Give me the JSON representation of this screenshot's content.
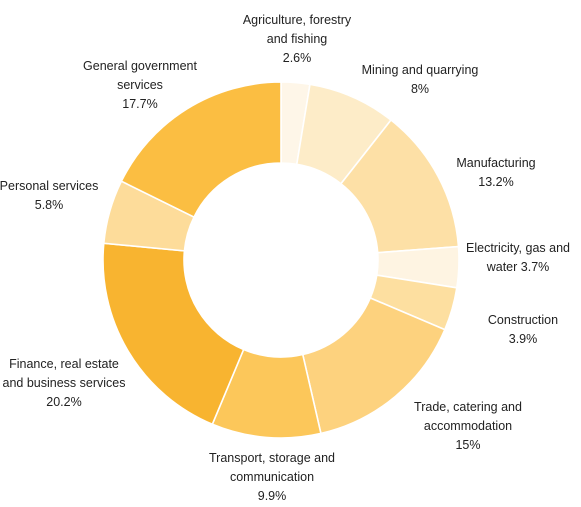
{
  "chart_data": {
    "type": "pie",
    "variant": "donut",
    "slices": [
      {
        "label": "Agriculture, forestry and fishing",
        "value": 2.6,
        "value_label": "2.6%",
        "color": "#fef6e8"
      },
      {
        "label": "Mining and quarrying",
        "value": 8,
        "value_label": "8%",
        "color": "#fdecc8"
      },
      {
        "label": "Manufacturing",
        "value": 13.2,
        "value_label": "13.2%",
        "color": "#fde0a6"
      },
      {
        "label": "Electricity, gas and water",
        "value": 3.7,
        "value_label": "3.7%",
        "color": "#fef4e2"
      },
      {
        "label": "Construction",
        "value": 3.9,
        "value_label": "3.9%",
        "color": "#fddfa0"
      },
      {
        "label": "Trade, catering and accommodation",
        "value": 15,
        "value_label": "15%",
        "color": "#fdd27e"
      },
      {
        "label": "Transport, storage and communication",
        "value": 9.9,
        "value_label": "9.9%",
        "color": "#fcc75a"
      },
      {
        "label": "Finance, real estate and business services",
        "value": 20.2,
        "value_label": "20.2%",
        "color": "#f8b430"
      },
      {
        "label": "Personal services",
        "value": 5.8,
        "value_label": "5.8%",
        "color": "#fddc9a"
      },
      {
        "label": "General government services",
        "value": 17.7,
        "value_label": "17.7%",
        "color": "#fbbe42"
      }
    ],
    "labels": [
      {
        "lines": [
          "Agriculture, forestry",
          "and fishing",
          "2.6%"
        ]
      },
      {
        "lines": [
          "Mining and quarrying",
          "8%"
        ]
      },
      {
        "lines": [
          "Manufacturing",
          "13.2%"
        ]
      },
      {
        "lines": [
          "Electricity, gas and",
          "water 3.7%"
        ]
      },
      {
        "lines": [
          "Construction",
          "3.9%"
        ]
      },
      {
        "lines": [
          "Trade, catering and",
          "accommodation",
          "15%"
        ]
      },
      {
        "lines": [
          "Transport, storage and",
          "communication",
          "9.9%"
        ]
      },
      {
        "lines": [
          "Finance, real estate",
          "and business services",
          "20.2%"
        ]
      },
      {
        "lines": [
          "Personal services",
          "5.8%"
        ]
      },
      {
        "lines": [
          "General government",
          "services",
          "17.7%"
        ]
      }
    ]
  }
}
